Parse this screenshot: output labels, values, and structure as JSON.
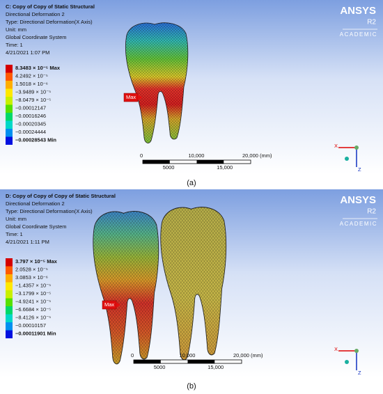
{
  "panels": [
    {
      "header": [
        "C: Copy of Copy of Static Structural",
        "Directional Deformation 2",
        "Type: Directional Deformation(X Axis)",
        "Unit: mm",
        "Global Coordinate System",
        "Time: 1",
        "4/21/2021 1:07 PM"
      ],
      "legend": [
        "8.3483 × 10⁻⁵ Max",
        "4.2492 × 10⁻⁵",
        "1.5018 × 10⁻⁶",
        "−3.9489 × 10⁻⁵",
        "−8.0479 × 10⁻⁵",
        "−0.00012147",
        "−0.00016246",
        "−0.00020345",
        "−0.00024444",
        "−0.00028543 Min"
      ],
      "probe": "Max",
      "scale": {
        "top": [
          "0",
          "10,000",
          "20,000 (mm)"
        ],
        "bottom": [
          "5000",
          "15,000"
        ]
      },
      "logo": {
        "brand": "ANSYS",
        "release": "R2",
        "edition": "ACADEMIC"
      },
      "axes": [
        "X",
        "Z"
      ],
      "caption": "(a)"
    },
    {
      "header": [
        "D: Copy of Copy of Copy of Static Structural",
        "Directional Deformation 2",
        "Type: Directional Deformation(X Axis)",
        "Unit: mm",
        "Global Coordinate System",
        "Time: 1",
        "4/21/2021 1:11 PM"
      ],
      "legend": [
        "3.797 × 10⁻⁵ Max",
        "2.0528 × 10⁻⁵",
        "3.0853 × 10⁻⁶",
        "−1.4357 × 10⁻⁵",
        "−3.1799 × 10⁻⁵",
        "−4.9241 × 10⁻⁵",
        "−6.6684 × 10⁻⁵",
        "−8.4126 × 10⁻⁵",
        "−0.00010157",
        "−0.00011901 Min"
      ],
      "probe": "Max",
      "scale": {
        "top": [
          "0",
          "10,000",
          "20,000 (mm)"
        ],
        "bottom": [
          "5000",
          "15,000"
        ]
      },
      "logo": {
        "brand": "ANSYS",
        "release": "R2",
        "edition": "ACADEMIC"
      },
      "axes": [
        "X",
        "Z"
      ],
      "caption": "(b)"
    }
  ]
}
